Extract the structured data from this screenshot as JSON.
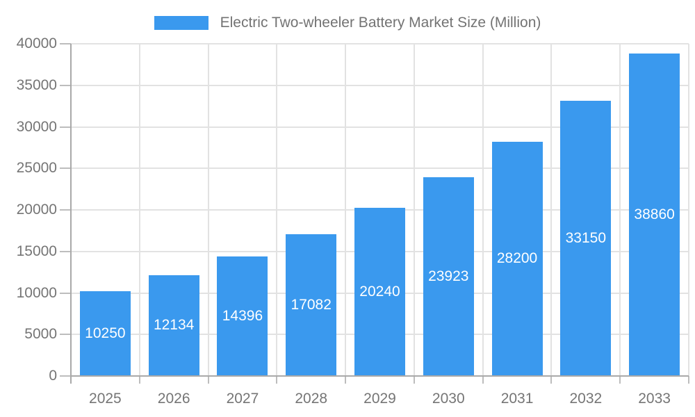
{
  "legend": {
    "label": "Electric Two-wheeler Battery Market Size (Million)",
    "swatch_color": "#3A99EE"
  },
  "chart_data": {
    "type": "bar",
    "title": "Electric Two-wheeler Battery Market Size (Million)",
    "series_name": "Electric Two-wheeler Battery Market Size (Million)",
    "categories": [
      "2025",
      "2026",
      "2027",
      "2028",
      "2029",
      "2030",
      "2031",
      "2032",
      "2033"
    ],
    "values": [
      10250,
      12134,
      14396,
      17082,
      20240,
      23923,
      28200,
      33150,
      38860
    ],
    "value_labels": [
      "10250",
      "12134",
      "14396",
      "17082",
      "20240",
      "23923",
      "28200",
      "33150",
      "38860"
    ],
    "xlabel": "",
    "ylabel": "",
    "ylim": [
      0,
      40000
    ],
    "yticks": [
      0,
      5000,
      10000,
      15000,
      20000,
      25000,
      30000,
      35000,
      40000
    ],
    "ytick_labels": [
      "0",
      "5000",
      "10000",
      "15000",
      "20000",
      "25000",
      "30000",
      "35000",
      "40000"
    ],
    "grid": true,
    "legend_position": "top",
    "bar_color": "#3A99EE",
    "bar_value_label_color": "#FFFFFF",
    "axis_text_color": "#757575",
    "legend_text_color": "#737373",
    "gridline_color": "#E2E2E2",
    "axis_line_color": "#A9A9A9",
    "tick_color": "#BDBDBD"
  }
}
